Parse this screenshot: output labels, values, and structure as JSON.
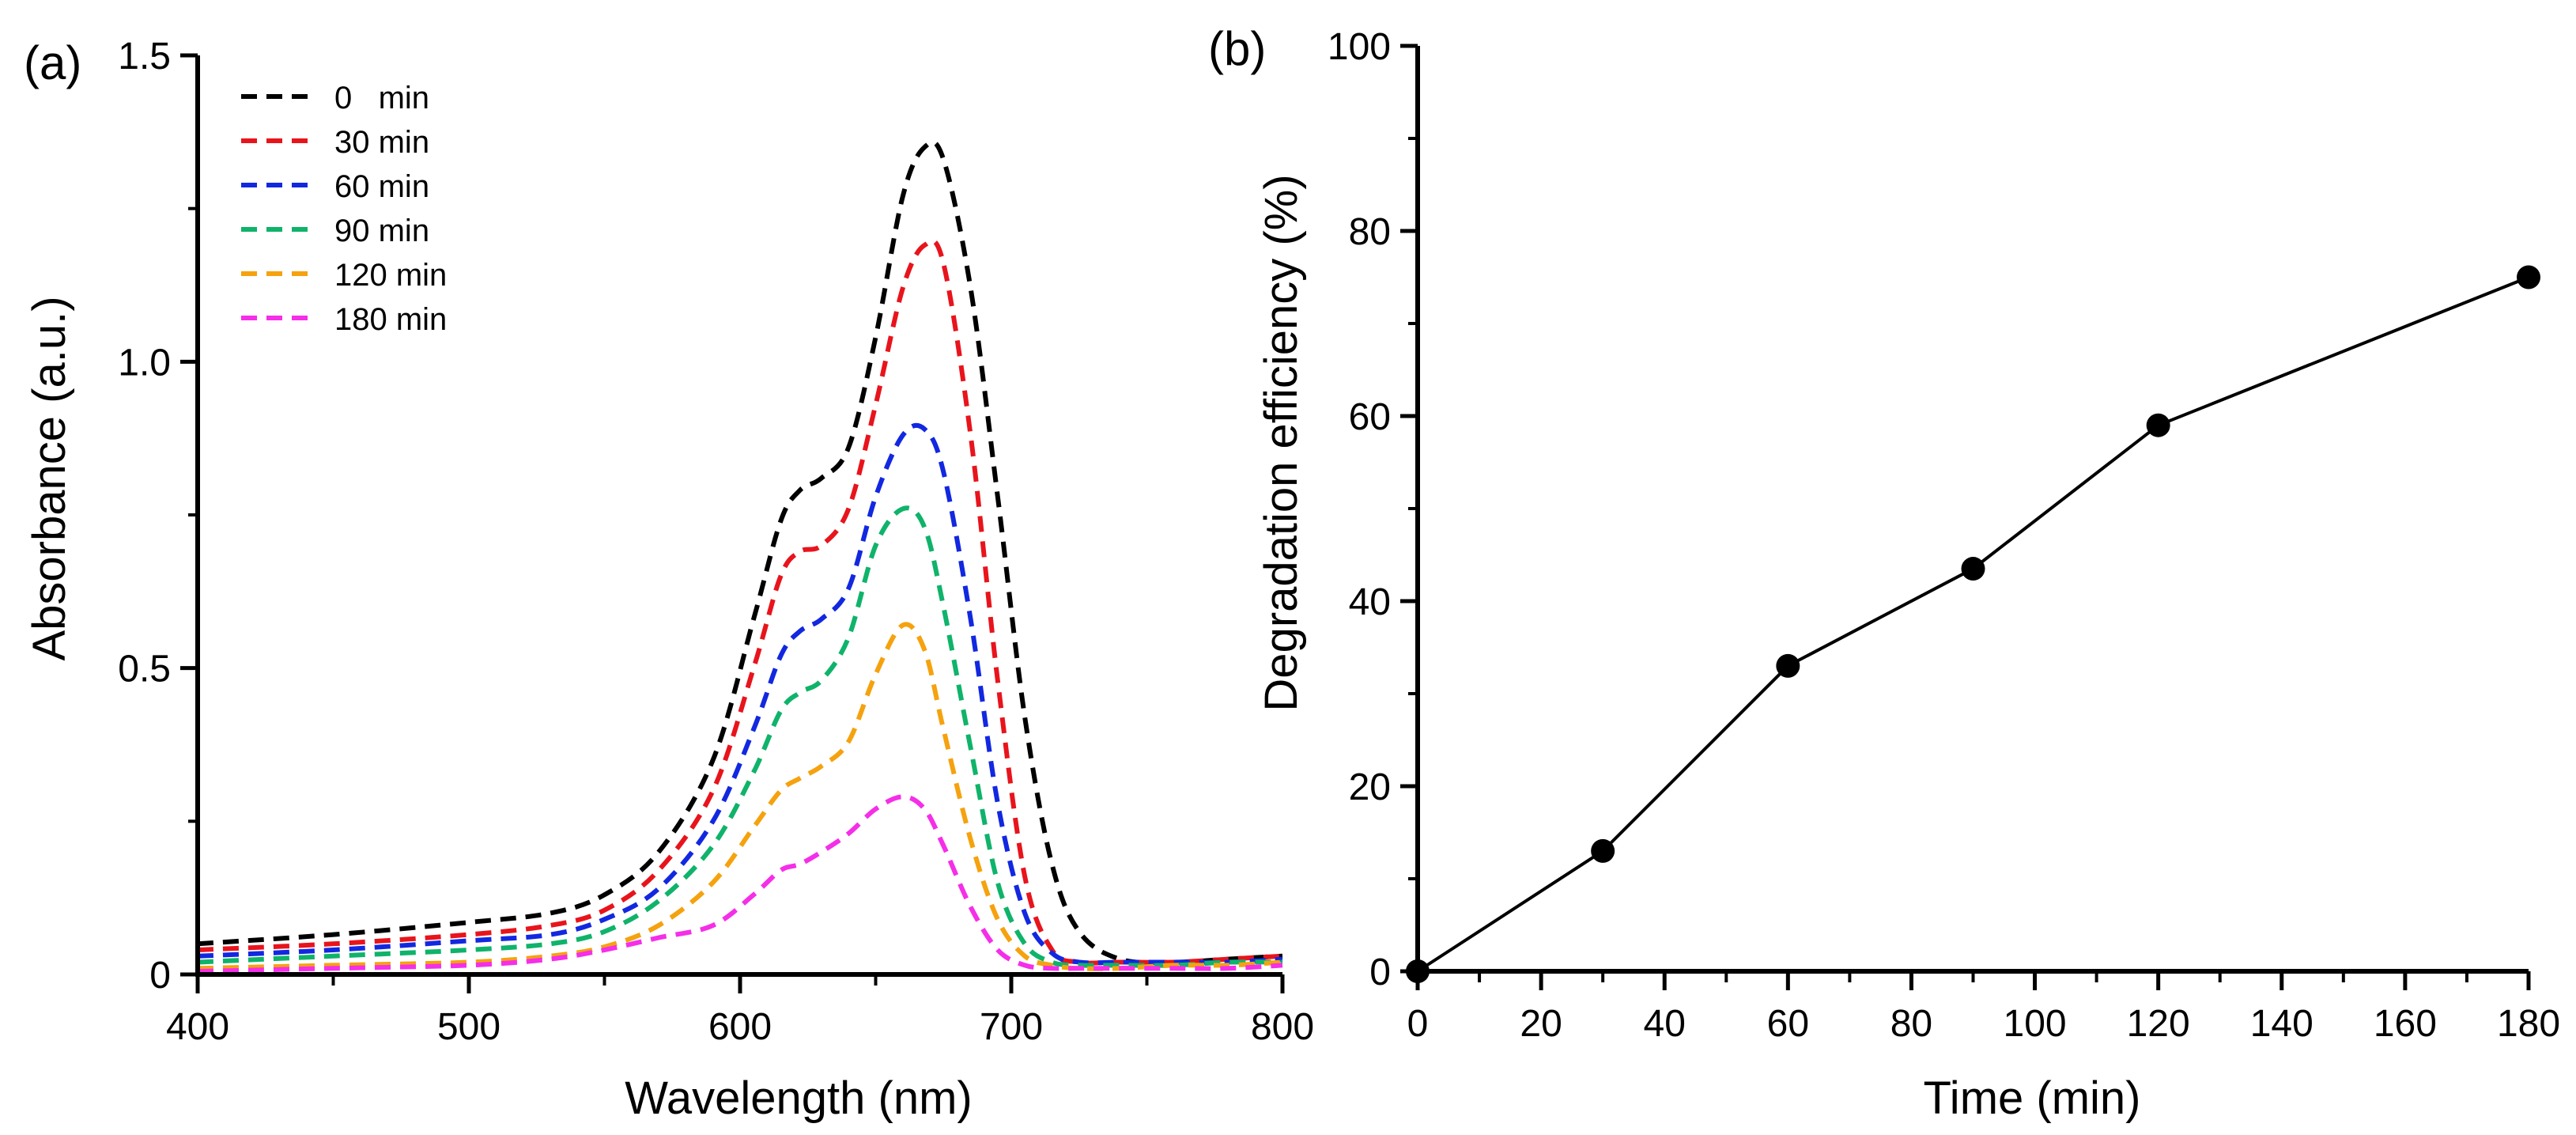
{
  "chart_data": [
    {
      "panel_label": "(a)",
      "type": "line",
      "xlabel": "Wavelength (nm)",
      "ylabel": "Absorbance (a.u.)",
      "xlim": [
        400,
        800
      ],
      "ylim": [
        0,
        1.5
      ],
      "xticks": [
        {
          "value": 400,
          "label": "400"
        },
        {
          "value": 500,
          "label": "500"
        },
        {
          "value": 600,
          "label": "600"
        },
        {
          "value": 700,
          "label": "700"
        },
        {
          "value": 800,
          "label": "800"
        }
      ],
      "yticks": [
        {
          "value": 0,
          "label": "0"
        },
        {
          "value": 0.5,
          "label": "0.5"
        },
        {
          "value": 1.0,
          "label": "1.0"
        },
        {
          "value": 1.5,
          "label": "1.5"
        }
      ],
      "grid": false,
      "legend_position": "top-left",
      "line_style": "dashed",
      "x": [
        400,
        450,
        500,
        530,
        550,
        570,
        590,
        605,
        615,
        622,
        630,
        640,
        650,
        660,
        668,
        675,
        685,
        695,
        705,
        715,
        725,
        740,
        760,
        780,
        800
      ],
      "series": [
        {
          "name": "0   min",
          "color": "#000000",
          "values": [
            0.05,
            0.065,
            0.085,
            0.1,
            0.13,
            0.2,
            0.35,
            0.58,
            0.74,
            0.79,
            0.81,
            0.86,
            1.04,
            1.27,
            1.35,
            1.33,
            1.12,
            0.78,
            0.42,
            0.18,
            0.07,
            0.025,
            0.02,
            0.025,
            0.03
          ]
        },
        {
          "name": "30 min",
          "color": "#e8141c",
          "values": [
            0.04,
            0.05,
            0.065,
            0.08,
            0.105,
            0.17,
            0.3,
            0.5,
            0.65,
            0.69,
            0.7,
            0.76,
            0.93,
            1.12,
            1.19,
            1.16,
            0.88,
            0.48,
            0.16,
            0.04,
            0.02,
            0.02,
            0.02,
            0.025,
            0.03
          ]
        },
        {
          "name": "60 min",
          "color": "#1228e0",
          "values": [
            0.03,
            0.04,
            0.055,
            0.065,
            0.09,
            0.14,
            0.25,
            0.4,
            0.52,
            0.56,
            0.58,
            0.63,
            0.78,
            0.88,
            0.89,
            0.82,
            0.58,
            0.28,
            0.1,
            0.035,
            0.02,
            0.02,
            0.02,
            0.02,
            0.025
          ]
        },
        {
          "name": "90 min",
          "color": "#0fb36a",
          "values": [
            0.02,
            0.03,
            0.04,
            0.05,
            0.07,
            0.12,
            0.21,
            0.33,
            0.43,
            0.46,
            0.48,
            0.55,
            0.7,
            0.76,
            0.73,
            0.6,
            0.37,
            0.15,
            0.05,
            0.02,
            0.015,
            0.015,
            0.015,
            0.02,
            0.02
          ]
        },
        {
          "name": "120 min",
          "color": "#f5a20f",
          "values": [
            0.01,
            0.015,
            0.02,
            0.03,
            0.045,
            0.08,
            0.15,
            0.24,
            0.3,
            0.32,
            0.34,
            0.38,
            0.49,
            0.57,
            0.53,
            0.4,
            0.22,
            0.09,
            0.03,
            0.015,
            0.01,
            0.01,
            0.015,
            0.015,
            0.02
          ]
        },
        {
          "name": "180 min",
          "color": "#f52ee8",
          "values": [
            0.005,
            0.01,
            0.015,
            0.025,
            0.04,
            0.06,
            0.08,
            0.13,
            0.17,
            0.18,
            0.2,
            0.23,
            0.27,
            0.29,
            0.27,
            0.21,
            0.11,
            0.04,
            0.015,
            0.01,
            0.01,
            0.01,
            0.01,
            0.01,
            0.015
          ]
        }
      ]
    },
    {
      "panel_label": "(b)",
      "type": "line",
      "xlabel": "Time (min)",
      "ylabel": "Degradation efficiency (%)",
      "xlim": [
        0,
        180
      ],
      "ylim": [
        0,
        100
      ],
      "xticks": [
        {
          "value": 0,
          "label": "0"
        },
        {
          "value": 20,
          "label": "20"
        },
        {
          "value": 40,
          "label": "40"
        },
        {
          "value": 60,
          "label": "60"
        },
        {
          "value": 80,
          "label": "80"
        },
        {
          "value": 100,
          "label": "100"
        },
        {
          "value": 120,
          "label": "120"
        },
        {
          "value": 140,
          "label": "140"
        },
        {
          "value": 160,
          "label": "160"
        },
        {
          "value": 180,
          "label": "180"
        }
      ],
      "yticks": [
        {
          "value": 0,
          "label": "0"
        },
        {
          "value": 20,
          "label": "20"
        },
        {
          "value": 40,
          "label": "40"
        },
        {
          "value": 60,
          "label": "60"
        },
        {
          "value": 80,
          "label": "80"
        },
        {
          "value": 100,
          "label": "100"
        }
      ],
      "grid": false,
      "marker": "circle",
      "color": "#000000",
      "x": [
        0,
        30,
        60,
        90,
        120,
        180
      ],
      "values": [
        0,
        13,
        33,
        43.5,
        59,
        75
      ]
    }
  ]
}
